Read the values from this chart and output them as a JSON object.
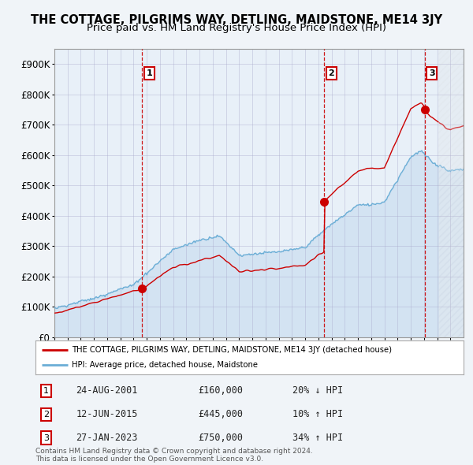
{
  "title": "THE COTTAGE, PILGRIMS WAY, DETLING, MAIDSTONE, ME14 3JY",
  "subtitle": "Price paid vs. HM Land Registry's House Price Index (HPI)",
  "title_fontsize": 10.5,
  "subtitle_fontsize": 9.5,
  "ylim": [
    0,
    950000
  ],
  "yticks": [
    0,
    100000,
    200000,
    300000,
    400000,
    500000,
    600000,
    700000,
    800000,
    900000
  ],
  "ytick_labels": [
    "£0",
    "£100K",
    "£200K",
    "£300K",
    "£400K",
    "£500K",
    "£600K",
    "£700K",
    "£800K",
    "£900K"
  ],
  "hpi_color": "#6baed6",
  "hpi_fill_color": "#c6dbef",
  "price_color": "#cc0000",
  "vline_color": "#cc0000",
  "background_color": "#f0f4f8",
  "plot_bg_color": "#e8f0f8",
  "transactions": [
    {
      "date": 2001.65,
      "price": 160000,
      "label": "1"
    },
    {
      "date": 2015.45,
      "price": 445000,
      "label": "2"
    },
    {
      "date": 2023.07,
      "price": 750000,
      "label": "3"
    }
  ],
  "transaction_table": [
    {
      "num": "1",
      "date": "24-AUG-2001",
      "price": "£160,000",
      "hpi": "20% ↓ HPI"
    },
    {
      "num": "2",
      "date": "12-JUN-2015",
      "price": "£445,000",
      "hpi": "10% ↑ HPI"
    },
    {
      "num": "3",
      "date": "27-JAN-2023",
      "price": "£750,000",
      "hpi": "34% ↑ HPI"
    }
  ],
  "legend_line1": "THE COTTAGE, PILGRIMS WAY, DETLING, MAIDSTONE, ME14 3JY (detached house)",
  "legend_line2": "HPI: Average price, detached house, Maidstone",
  "footer": "Contains HM Land Registry data © Crown copyright and database right 2024.\nThis data is licensed under the Open Government Licence v3.0.",
  "xmin": 1995.0,
  "xmax": 2026.0,
  "hatch_xmin": 2024.1
}
